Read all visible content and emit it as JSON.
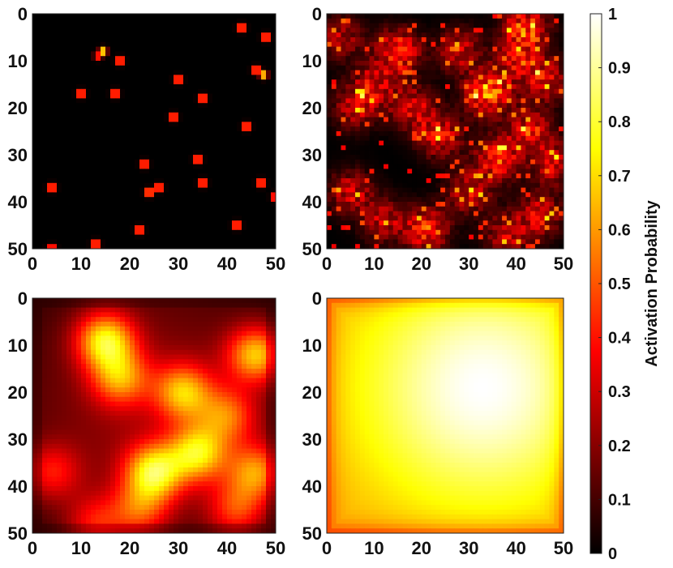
{
  "chart_data": {
    "type": "heatmap",
    "grid_size": 50,
    "colormap": "hot",
    "colorbar": {
      "label": "Activation Probability",
      "range": [
        0,
        1
      ],
      "ticks": [
        "0",
        "0.1",
        "0.2",
        "0.3",
        "0.4",
        "0.5",
        "0.6",
        "0.7",
        "0.8",
        "0.9",
        "1"
      ]
    },
    "x_ticks": [
      "0",
      "10",
      "20",
      "30",
      "40",
      "50"
    ],
    "y_ticks": [
      "0",
      "10",
      "20",
      "30",
      "40",
      "50"
    ],
    "xlim": [
      0,
      50
    ],
    "ylim": [
      0,
      50
    ],
    "y_axis_reversed": true,
    "panels": [
      {
        "id": "top-left",
        "kind": "sparse-points",
        "hotspots": [
          {
            "x": 14.5,
            "y": 8,
            "v": 1.0
          },
          {
            "x": 13.5,
            "y": 9,
            "v": 0.6
          },
          {
            "x": 18,
            "y": 10,
            "v": 0.95
          },
          {
            "x": 43,
            "y": 3,
            "v": 0.95
          },
          {
            "x": 48,
            "y": 5,
            "v": 0.95
          },
          {
            "x": 46,
            "y": 12,
            "v": 0.95
          },
          {
            "x": 47.5,
            "y": 13,
            "v": 0.95
          },
          {
            "x": 30,
            "y": 14,
            "v": 0.95
          },
          {
            "x": 10,
            "y": 17,
            "v": 0.95
          },
          {
            "x": 17,
            "y": 17,
            "v": 0.95
          },
          {
            "x": 35,
            "y": 18,
            "v": 0.95
          },
          {
            "x": 29,
            "y": 22,
            "v": 0.95
          },
          {
            "x": 44,
            "y": 24,
            "v": 0.95
          },
          {
            "x": 34,
            "y": 31,
            "v": 0.95
          },
          {
            "x": 23,
            "y": 32,
            "v": 0.95
          },
          {
            "x": 35,
            "y": 36,
            "v": 0.95
          },
          {
            "x": 47,
            "y": 36,
            "v": 0.95
          },
          {
            "x": 4,
            "y": 37,
            "v": 0.95
          },
          {
            "x": 26,
            "y": 37,
            "v": 0.95
          },
          {
            "x": 24,
            "y": 38,
            "v": 1.0
          },
          {
            "x": 50,
            "y": 39,
            "v": 0.9
          },
          {
            "x": 42,
            "y": 45,
            "v": 0.95
          },
          {
            "x": 22,
            "y": 46,
            "v": 0.95
          },
          {
            "x": 13,
            "y": 49,
            "v": 0.95
          },
          {
            "x": 4,
            "y": 50,
            "v": 0.9
          }
        ]
      },
      {
        "id": "top-right",
        "kind": "speckled-clusters",
        "hotspots": [
          {
            "x": 34,
            "y": 17,
            "v": 1.0
          },
          {
            "x": 42,
            "y": 3,
            "v": 0.85
          },
          {
            "x": 15,
            "y": 8,
            "v": 0.8
          },
          {
            "x": 21,
            "y": 46,
            "v": 0.75
          },
          {
            "x": 36,
            "y": 31,
            "v": 0.75
          },
          {
            "x": 43,
            "y": 25,
            "v": 0.7
          },
          {
            "x": 24,
            "y": 26,
            "v": 0.65
          },
          {
            "x": 18,
            "y": 20,
            "v": 0.6
          },
          {
            "x": 10,
            "y": 15,
            "v": 0.55
          },
          {
            "x": 46,
            "y": 14,
            "v": 0.6
          },
          {
            "x": 5,
            "y": 38,
            "v": 0.55
          },
          {
            "x": 45,
            "y": 43,
            "v": 0.6
          },
          {
            "x": 30,
            "y": 38,
            "v": 0.55
          },
          {
            "x": 6,
            "y": 20,
            "v": 0.5
          },
          {
            "x": 28,
            "y": 8,
            "v": 0.55
          },
          {
            "x": 12,
            "y": 44,
            "v": 0.5
          },
          {
            "x": 48,
            "y": 32,
            "v": 0.55
          },
          {
            "x": 40,
            "y": 10,
            "v": 0.5
          },
          {
            "x": 38,
            "y": 47,
            "v": 0.5
          },
          {
            "x": 3,
            "y": 5,
            "v": 0.45
          }
        ]
      },
      {
        "id": "bottom-left",
        "kind": "smooth-blobs",
        "hotspots": [
          {
            "x": 15,
            "y": 9,
            "v": 1.0
          },
          {
            "x": 25,
            "y": 37,
            "v": 1.0
          },
          {
            "x": 34,
            "y": 33,
            "v": 0.9
          },
          {
            "x": 46,
            "y": 12,
            "v": 0.9
          },
          {
            "x": 31,
            "y": 20,
            "v": 0.8
          },
          {
            "x": 46,
            "y": 37,
            "v": 0.75
          },
          {
            "x": 40,
            "y": 25,
            "v": 0.6
          },
          {
            "x": 18,
            "y": 17,
            "v": 0.7
          },
          {
            "x": 4,
            "y": 37,
            "v": 0.45
          },
          {
            "x": 13,
            "y": 48,
            "v": 0.45
          },
          {
            "x": 22,
            "y": 45,
            "v": 0.55
          },
          {
            "x": 42,
            "y": 45,
            "v": 0.55
          }
        ]
      },
      {
        "id": "bottom-right",
        "kind": "diffuse-field",
        "hotspots": [
          {
            "x": 33,
            "y": 19,
            "v": 1.0
          }
        ]
      }
    ]
  }
}
